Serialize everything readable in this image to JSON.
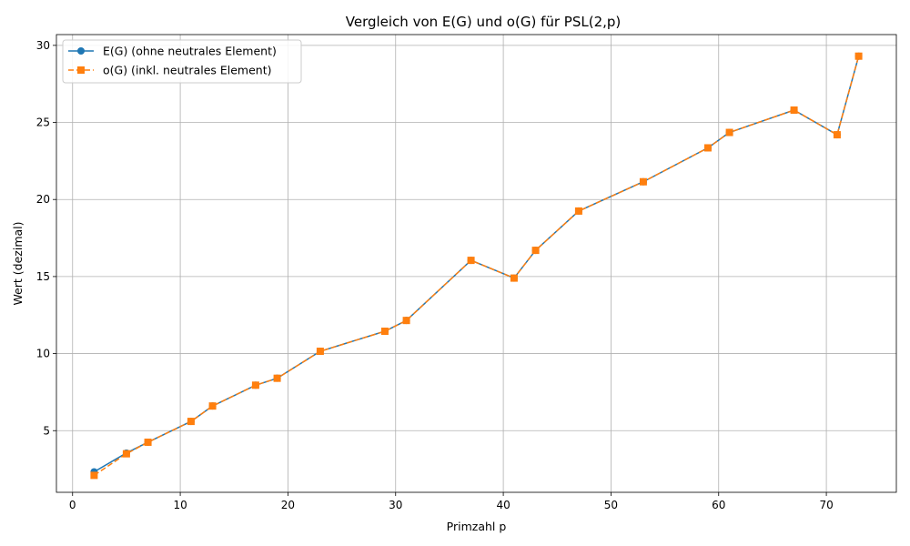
{
  "chart_data": {
    "type": "line",
    "title": "Vergleich von E(G) und o(G) für PSL(2,p)",
    "xlabel": "Primzahl p",
    "ylabel": "Wert (dezimal)",
    "xlim": [
      -1.5,
      76.5
    ],
    "ylim": [
      1.0,
      30.7
    ],
    "xticks": [
      0,
      10,
      20,
      30,
      40,
      50,
      60,
      70
    ],
    "yticks": [
      5,
      10,
      15,
      20,
      25,
      30
    ],
    "grid": true,
    "legend_position": "top-left",
    "x": [
      2,
      5,
      7,
      11,
      13,
      17,
      19,
      23,
      29,
      31,
      37,
      41,
      43,
      47,
      53,
      59,
      61,
      67,
      71,
      73
    ],
    "series": [
      {
        "name": "E(G) (ohne neutrales Element)",
        "color": "#1f77b4",
        "marker": "circle",
        "linestyle": "solid",
        "values": [
          2.33,
          3.55,
          4.25,
          5.6,
          6.6,
          7.95,
          8.4,
          10.15,
          11.45,
          12.15,
          16.05,
          14.9,
          16.7,
          19.25,
          21.15,
          23.35,
          24.35,
          25.8,
          24.2,
          29.3
        ]
      },
      {
        "name": "o(G) (inkl. neutrales Element)",
        "color": "#ff7f0e",
        "marker": "square",
        "linestyle": "dashed",
        "values": [
          2.1,
          3.5,
          4.25,
          5.6,
          6.6,
          7.95,
          8.4,
          10.15,
          11.45,
          12.15,
          16.05,
          14.9,
          16.7,
          19.25,
          21.15,
          23.35,
          24.35,
          25.8,
          24.2,
          29.3
        ]
      }
    ]
  }
}
